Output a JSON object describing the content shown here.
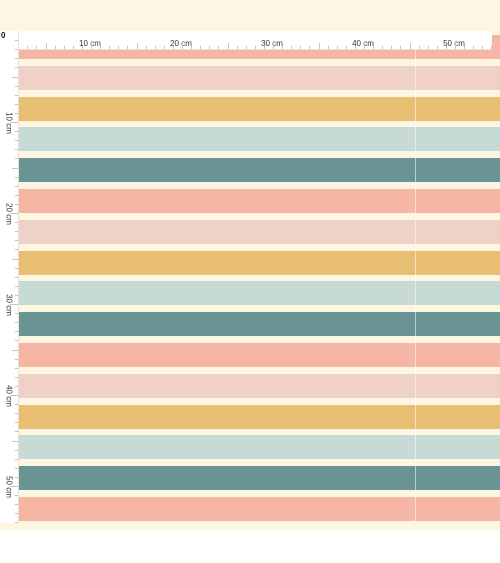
{
  "ruler": {
    "origin_label": "0",
    "top_labels": [
      "10 cm",
      "20 cm",
      "30 cm",
      "40 cm",
      "50 cm"
    ],
    "left_labels": [
      "10 cm",
      "20 cm",
      "30 cm",
      "40 cm",
      "50 cm"
    ]
  },
  "pattern": {
    "background": "#fdf6e3",
    "colors": {
      "peach": "#f5b6a3",
      "blush": "#eed1c7",
      "mustard": "#e8be73",
      "sage": "#c8dad5",
      "teal": "#6a9393"
    },
    "stripe_sequence": [
      "peach",
      "blush",
      "mustard",
      "sage",
      "teal",
      "peach",
      "blush",
      "mustard",
      "sage",
      "teal",
      "peach",
      "blush",
      "mustard",
      "sage",
      "teal",
      "peach"
    ]
  }
}
